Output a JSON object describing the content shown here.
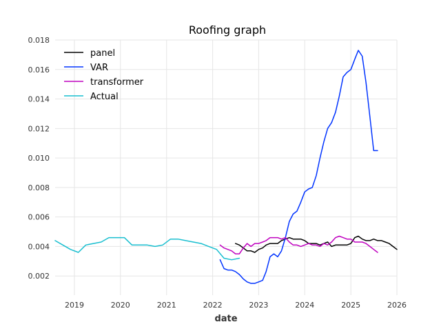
{
  "chart_data": {
    "type": "line",
    "title": "Roofing graph",
    "xlabel": "date",
    "ylabel": "",
    "xlim": [
      "2018-08-01",
      "2026-01-01"
    ],
    "ylim": [
      0.0007,
      0.018
    ],
    "x_ticks": [
      "2019",
      "2020",
      "2021",
      "2022",
      "2023",
      "2024",
      "2025",
      "2026"
    ],
    "y_ticks": [
      "0.002",
      "0.004",
      "0.006",
      "0.008",
      "0.010",
      "0.012",
      "0.014",
      "0.016",
      "0.018"
    ],
    "grid": true,
    "legend_position": "top-left",
    "series": [
      {
        "name": "panel",
        "color": "#000000",
        "x": [
          "2022-07-01",
          "2022-08-01",
          "2022-09-01",
          "2022-10-01",
          "2022-11-01",
          "2022-12-01",
          "2023-01-01",
          "2023-02-01",
          "2023-03-01",
          "2023-04-01",
          "2023-05-01",
          "2023-06-01",
          "2023-07-01",
          "2023-08-01",
          "2023-09-01",
          "2023-10-01",
          "2023-11-01",
          "2023-12-01",
          "2024-01-01",
          "2024-02-01",
          "2024-03-01",
          "2024-04-01",
          "2024-05-01",
          "2024-06-01",
          "2024-07-01",
          "2024-08-01",
          "2024-09-01",
          "2024-10-01",
          "2024-11-01",
          "2024-12-01",
          "2025-01-01",
          "2025-02-01",
          "2025-03-01",
          "2025-04-01",
          "2025-05-01",
          "2025-06-01",
          "2025-07-01",
          "2025-08-01",
          "2025-09-01",
          "2025-10-01",
          "2025-11-01",
          "2025-12-01",
          "2026-01-01"
        ],
        "values": [
          0.0042,
          0.0041,
          0.0039,
          0.0037,
          0.0037,
          0.0036,
          0.0038,
          0.0039,
          0.0041,
          0.0042,
          0.0042,
          0.0042,
          0.0044,
          0.0045,
          0.0046,
          0.0045,
          0.0045,
          0.0045,
          0.0044,
          0.0042,
          0.0042,
          0.0042,
          0.0041,
          0.0042,
          0.0043,
          0.004,
          0.0041,
          0.0041,
          0.0041,
          0.0041,
          0.0042,
          0.0046,
          0.0047,
          0.0045,
          0.0044,
          0.0044,
          0.0045,
          0.0044,
          0.0044,
          0.0043,
          0.0042,
          0.004,
          0.0038
        ]
      },
      {
        "name": "VAR",
        "color": "#0033ff",
        "x": [
          "2022-03-01",
          "2022-04-01",
          "2022-05-01",
          "2022-06-01",
          "2022-07-01",
          "2022-08-01",
          "2022-09-01",
          "2022-10-01",
          "2022-11-01",
          "2022-12-01",
          "2023-01-01",
          "2023-02-01",
          "2023-03-01",
          "2023-04-01",
          "2023-05-01",
          "2023-06-01",
          "2023-07-01",
          "2023-08-01",
          "2023-09-01",
          "2023-10-01",
          "2023-11-01",
          "2023-12-01",
          "2024-01-01",
          "2024-02-01",
          "2024-03-01",
          "2024-04-01",
          "2024-05-01",
          "2024-06-01",
          "2024-07-01",
          "2024-08-01",
          "2024-09-01",
          "2024-10-01",
          "2024-11-01",
          "2024-12-01",
          "2025-01-01",
          "2025-02-01",
          "2025-03-01",
          "2025-04-01",
          "2025-05-01",
          "2025-06-01",
          "2025-07-01",
          "2025-08-01"
        ],
        "values": [
          0.0031,
          0.0025,
          0.0024,
          0.0024,
          0.0023,
          0.0021,
          0.0018,
          0.0016,
          0.0015,
          0.0015,
          0.0016,
          0.0017,
          0.0023,
          0.0033,
          0.0035,
          0.0033,
          0.0037,
          0.0046,
          0.0057,
          0.0062,
          0.0064,
          0.007,
          0.0077,
          0.0079,
          0.008,
          0.0088,
          0.01,
          0.0111,
          0.012,
          0.0124,
          0.0131,
          0.0142,
          0.0155,
          0.0158,
          0.016,
          0.0167,
          0.0173,
          0.0169,
          0.0151,
          0.0128,
          0.0105,
          0.0105
        ]
      },
      {
        "name": "transformer",
        "color": "#bf00bf",
        "x": [
          "2022-03-01",
          "2022-04-01",
          "2022-05-01",
          "2022-06-01",
          "2022-07-01",
          "2022-08-01",
          "2022-09-01",
          "2022-10-01",
          "2022-11-01",
          "2022-12-01",
          "2023-01-01",
          "2023-02-01",
          "2023-03-01",
          "2023-04-01",
          "2023-05-01",
          "2023-06-01",
          "2023-07-01",
          "2023-08-01",
          "2023-09-01",
          "2023-10-01",
          "2023-11-01",
          "2023-12-01",
          "2024-01-01",
          "2024-02-01",
          "2024-03-01",
          "2024-04-01",
          "2024-05-01",
          "2024-06-01",
          "2024-07-01",
          "2024-08-01",
          "2024-09-01",
          "2024-10-01",
          "2024-11-01",
          "2024-12-01",
          "2025-01-01",
          "2025-02-01",
          "2025-03-01",
          "2025-04-01",
          "2025-05-01",
          "2025-06-01",
          "2025-07-01",
          "2025-08-01"
        ],
        "values": [
          0.0041,
          0.0039,
          0.0038,
          0.0037,
          0.0035,
          0.0035,
          0.0039,
          0.0042,
          0.004,
          0.0042,
          0.0042,
          0.0043,
          0.0044,
          0.0046,
          0.0046,
          0.0046,
          0.0045,
          0.0046,
          0.0043,
          0.0041,
          0.0041,
          0.004,
          0.0041,
          0.0042,
          0.0041,
          0.0041,
          0.004,
          0.0042,
          0.0041,
          0.0043,
          0.0046,
          0.0047,
          0.0046,
          0.0045,
          0.0045,
          0.0043,
          0.0043,
          0.0043,
          0.0042,
          0.004,
          0.0038,
          0.0036
        ]
      },
      {
        "name": "Actual",
        "color": "#17becf",
        "x": [
          "2018-08-01",
          "2018-10-01",
          "2018-12-01",
          "2019-02-01",
          "2019-04-01",
          "2019-06-01",
          "2019-08-01",
          "2019-10-01",
          "2019-12-01",
          "2020-02-01",
          "2020-04-01",
          "2020-06-01",
          "2020-08-01",
          "2020-10-01",
          "2020-12-01",
          "2021-02-01",
          "2021-04-01",
          "2021-06-01",
          "2021-08-01",
          "2021-10-01",
          "2021-12-01",
          "2022-02-01",
          "2022-04-01",
          "2022-06-01",
          "2022-08-01"
        ],
        "values": [
          0.0044,
          0.0041,
          0.0038,
          0.0036,
          0.0041,
          0.0042,
          0.0043,
          0.0046,
          0.0046,
          0.0046,
          0.0041,
          0.0041,
          0.0041,
          0.004,
          0.0041,
          0.0045,
          0.0045,
          0.0044,
          0.0043,
          0.0042,
          0.004,
          0.0038,
          0.0032,
          0.0031,
          0.0032
        ]
      }
    ]
  }
}
